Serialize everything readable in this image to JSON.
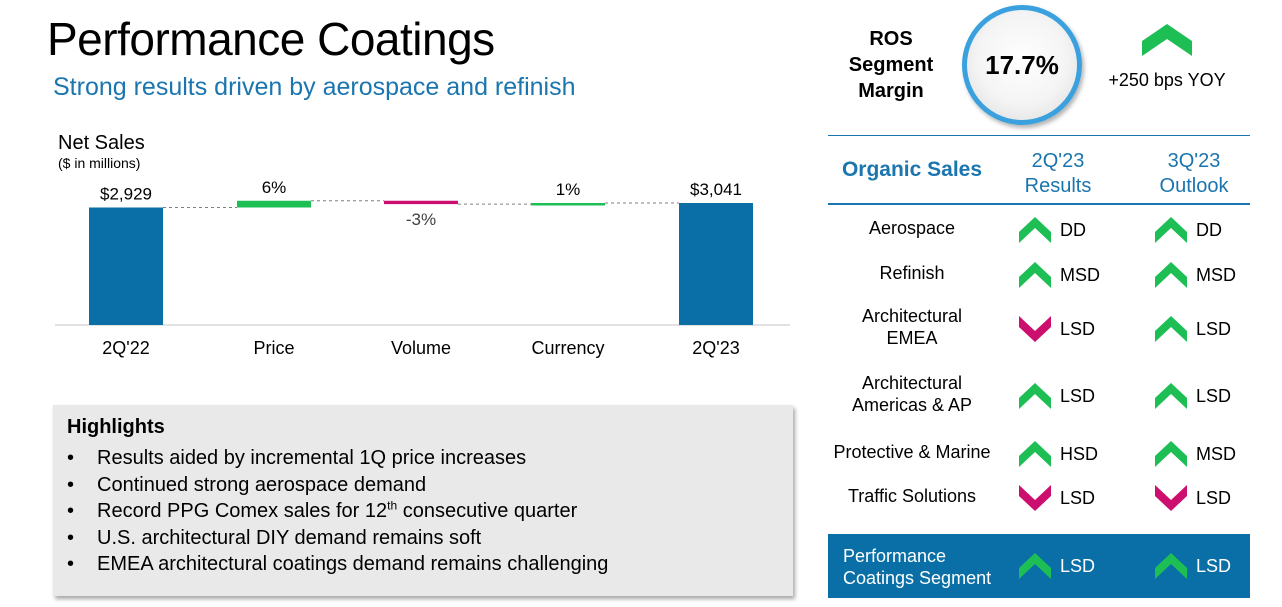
{
  "header": {
    "title": "Performance Coatings",
    "subtitle": "Strong results driven by aerospace and refinish"
  },
  "net_sales": {
    "title": "Net Sales",
    "unit": "($ in millions)"
  },
  "chart_data": {
    "type": "bar",
    "title": "Net Sales",
    "subtitle": "($ in millions)",
    "categories": [
      "2Q'22",
      "Price",
      "Volume",
      "Currency",
      "2Q'23"
    ],
    "values": [
      2929,
      6,
      -3,
      1,
      3041
    ],
    "data_labels": [
      "$2,929",
      "6%",
      "-3%",
      "1%",
      "$3,041"
    ],
    "bar_kinds": [
      "total",
      "delta",
      "delta",
      "delta",
      "total"
    ],
    "colors": [
      "#0a6fa6",
      "#1dbf55",
      "#cc0e6e",
      "#1dbf55",
      "#0a6fa6"
    ],
    "baseline_color": "#d9d9d9",
    "connector_color": "#7f7f7f"
  },
  "highlights": {
    "title": "Highlights",
    "items": [
      {
        "text": "Results aided by incremental 1Q price increases"
      },
      {
        "text": "Continued strong aerospace demand"
      },
      {
        "pre": "Record PPG Comex sales for 12",
        "sup": "th",
        "post": " consecutive quarter"
      },
      {
        "text": "U.S. architectural DIY demand remains soft"
      },
      {
        "text": "EMEA architectural coatings demand remains challenging"
      }
    ]
  },
  "ros": {
    "label_lines": [
      "ROS",
      "Segment",
      "Margin"
    ],
    "value": "17.7%",
    "change": "+250 bps YOY",
    "arrow_icon": "up-chevron-icon",
    "ring_color": "#3aa1de"
  },
  "organic_sales": {
    "title": "Organic Sales",
    "col_results": [
      "2Q'23",
      "Results"
    ],
    "col_outlook": [
      "3Q'23",
      "Outlook"
    ],
    "rows": [
      {
        "lines": [
          "Aerospace"
        ],
        "r_dir": "up",
        "r_val": "DD",
        "o_dir": "up",
        "o_val": "DD"
      },
      {
        "lines": [
          "Refinish"
        ],
        "r_dir": "up",
        "r_val": "MSD",
        "o_dir": "up",
        "o_val": "MSD"
      },
      {
        "lines": [
          "Architectural",
          "EMEA"
        ],
        "r_dir": "down",
        "r_val": "LSD",
        "o_dir": "up",
        "o_val": "LSD"
      },
      {
        "lines": [
          "Architectural",
          "Americas & AP"
        ],
        "r_dir": "up",
        "r_val": "LSD",
        "o_dir": "up",
        "o_val": "LSD"
      },
      {
        "lines": [
          "Protective & Marine"
        ],
        "r_dir": "up",
        "r_val": "HSD",
        "o_dir": "up",
        "o_val": "MSD"
      },
      {
        "lines": [
          "Traffic Solutions"
        ],
        "r_dir": "down",
        "r_val": "LSD",
        "o_dir": "down",
        "o_val": "LSD"
      }
    ],
    "segment": {
      "lines": [
        "Performance",
        "Coatings Segment"
      ],
      "r_dir": "up",
      "r_val": "LSD",
      "o_dir": "up",
      "o_val": "LSD"
    },
    "icons": {
      "up": "up-chevron-icon",
      "down": "down-chevron-icon"
    },
    "colors": {
      "up": "#1dbf55",
      "down": "#cc0e6e",
      "accent": "#1b75ae",
      "band": "#0a6fa6"
    }
  }
}
